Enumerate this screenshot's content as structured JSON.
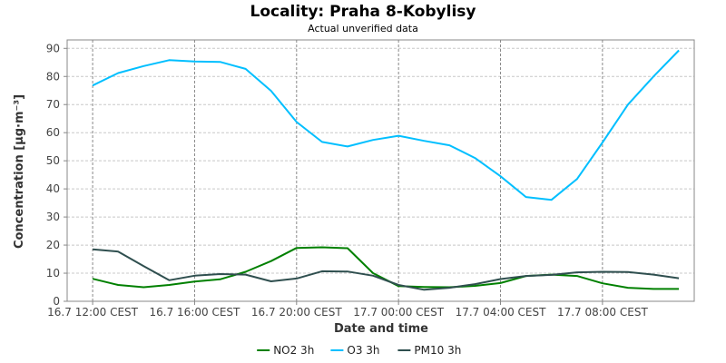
{
  "chart_data": {
    "type": "line",
    "title": "Locality: Praha 8-Kobylisy",
    "subtitle": "Actual unverified data",
    "xlabel": "Date and time",
    "ylabel": "Concentration [µg·m⁻³]",
    "ylim": [
      0,
      93
    ],
    "yticks": [
      0,
      10,
      20,
      30,
      40,
      50,
      60,
      70,
      80,
      90
    ],
    "x_hours_start": 0,
    "xlim_hours": [
      -1,
      23.6
    ],
    "xticks": [
      {
        "hour": 0,
        "label": "16.7 12:00 CEST"
      },
      {
        "hour": 4,
        "label": "16.7 16:00 CEST"
      },
      {
        "hour": 8,
        "label": "16.7 20:00 CEST"
      },
      {
        "hour": 12,
        "label": "17.7 00:00 CEST"
      },
      {
        "hour": 16,
        "label": "17.7 04:00 CEST"
      },
      {
        "hour": 20,
        "label": "17.7 08:00 CEST"
      }
    ],
    "x": [
      0,
      1,
      2,
      3,
      4,
      5,
      6,
      7,
      8,
      9,
      10,
      11,
      12,
      13,
      14,
      15,
      16,
      17,
      18,
      19,
      20,
      21,
      22,
      23
    ],
    "grid": true,
    "legend_position": "bottom",
    "series": [
      {
        "name": "NO2 3h",
        "color": "#008000",
        "values": [
          8.0,
          5.8,
          5.0,
          5.8,
          7.0,
          7.8,
          10.5,
          14.3,
          19.0,
          19.2,
          18.9,
          10.0,
          5.4,
          5.1,
          5.0,
          5.5,
          6.5,
          9.0,
          9.5,
          9.0,
          6.4,
          4.8,
          4.4,
          4.4
        ]
      },
      {
        "name": "O3 3h",
        "color": "#00BFFF",
        "values": [
          76.8,
          81.2,
          83.7,
          85.8,
          85.3,
          85.2,
          82.7,
          74.9,
          63.8,
          56.7,
          55.1,
          57.4,
          58.9,
          57.1,
          55.5,
          51.0,
          44.5,
          37.1,
          36.1,
          43.5,
          56.5,
          70.0,
          80.0,
          89.3
        ]
      },
      {
        "name": "PM10 3h",
        "color": "#2F4F4F",
        "values": [
          18.5,
          17.7,
          12.5,
          7.5,
          9.1,
          9.7,
          9.5,
          7.1,
          8.1,
          10.7,
          10.6,
          9.1,
          5.8,
          4.1,
          4.8,
          6.1,
          7.9,
          9.0,
          9.4,
          10.3,
          10.5,
          10.4,
          9.5,
          8.2
        ]
      }
    ]
  }
}
